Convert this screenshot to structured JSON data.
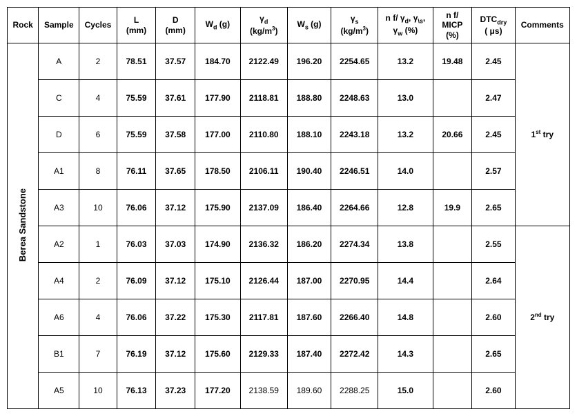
{
  "headers": {
    "rock": "Rock",
    "sample": "Sample",
    "cycles": "Cycles",
    "L": "L",
    "L_unit": "(mm)",
    "D": "D",
    "D_unit": "(mm)",
    "Wd": "W",
    "Wd_sub": "d",
    "Wd_unit": " (g)",
    "gd": "γ",
    "gd_sub": "d",
    "gd_unit1": "(kg/m",
    "gd_unit2": ")",
    "Ws": "W",
    "Ws_sub": "s",
    "Ws_unit": " (g)",
    "gs": "γ",
    "gs_sub": "s",
    "gs_unit1": "(kg/m",
    "gs_unit2": ")",
    "nf1_a": "n f/ γ",
    "nf1_b": ", γ",
    "nf1_c": ",",
    "nf1_d": "γ",
    "nf1_e": " (%)",
    "nf1_sub_d": "d",
    "nf1_sub_s": "\\s",
    "nf1_sub_w": "w",
    "nf2_a": "n f/",
    "nf2_b": "MICP",
    "nf2_c": "(%)",
    "dtc_a": "DTC",
    "dtc_sub": "dry",
    "dtc_b": "( μs)",
    "comments": "Comments"
  },
  "rock": "Berea Sandstone",
  "groups": [
    {
      "comment": "1",
      "comment_suffix": "st",
      "comment_tail": " try",
      "rows": [
        {
          "sample": "A",
          "cycles": "2",
          "L": "78.51",
          "D": "37.57",
          "Wd": "184.70",
          "gd": "2122.49",
          "Ws": "196.20",
          "gs": "2254.65",
          "nf1": "13.2",
          "nf2": "19.48",
          "dtc": "2.45"
        },
        {
          "sample": "C",
          "cycles": "4",
          "L": "75.59",
          "D": "37.61",
          "Wd": "177.90",
          "gd": "2118.81",
          "Ws": "188.80",
          "gs": "2248.63",
          "nf1": "13.0",
          "nf2": "",
          "dtc": "2.47"
        },
        {
          "sample": "D",
          "cycles": "6",
          "L": "75.59",
          "D": "37.58",
          "Wd": "177.00",
          "gd": "2110.80",
          "Ws": "188.10",
          "gs": "2243.18",
          "nf1": "13.2",
          "nf2": "20.66",
          "dtc": "2.45"
        },
        {
          "sample": "A1",
          "cycles": "8",
          "L": "76.11",
          "D": "37.65",
          "Wd": "178.50",
          "gd": "2106.11",
          "Ws": "190.40",
          "gs": "2246.51",
          "nf1": "14.0",
          "nf2": "",
          "dtc": "2.57"
        },
        {
          "sample": "A3",
          "cycles": "10",
          "L": "76.06",
          "D": "37.12",
          "Wd": "175.90",
          "gd": "2137.09",
          "Ws": "186.40",
          "gs": "2264.66",
          "nf1": "12.8",
          "nf2": "19.9",
          "dtc": "2.65"
        }
      ]
    },
    {
      "comment": "2",
      "comment_suffix": "nd",
      "comment_tail": " try",
      "rows": [
        {
          "sample": "A2",
          "cycles": "1",
          "L": "76.03",
          "D": "37.03",
          "Wd": "174.90",
          "gd": "2136.32",
          "Ws": "186.20",
          "gs": "2274.34",
          "nf1": "13.8",
          "nf2": "",
          "dtc": "2.55"
        },
        {
          "sample": "A4",
          "cycles": "2",
          "L": "76.09",
          "D": "37.12",
          "Wd": "175.10",
          "gd": "2126.44",
          "Ws": "187.00",
          "gs": "2270.95",
          "nf1": "14.4",
          "nf2": "",
          "dtc": "2.64"
        },
        {
          "sample": "A6",
          "cycles": "4",
          "L": "76.06",
          "D": "37.22",
          "Wd": "175.30",
          "gd": "2117.81",
          "Ws": "187.60",
          "gs": "2266.40",
          "nf1": "14.8",
          "nf2": "",
          "dtc": "2.60"
        },
        {
          "sample": "B1",
          "cycles": "7",
          "L": "76.19",
          "D": "37.12",
          "Wd": "175.60",
          "gd": "2129.33",
          "Ws": "187.40",
          "gs": "2272.42",
          "nf1": "14.3",
          "nf2": "",
          "dtc": "2.65"
        },
        {
          "sample": "A5",
          "cycles": "10",
          "L": "76.13",
          "D": "37.23",
          "Wd": "177.20",
          "gd": "2138.59",
          "Ws": "189.60",
          "gs": "2288.25",
          "nf1": "15.0",
          "nf2": "",
          "dtc": "2.60",
          "nonbold": [
            "gd",
            "Ws",
            "gs"
          ]
        }
      ]
    }
  ]
}
